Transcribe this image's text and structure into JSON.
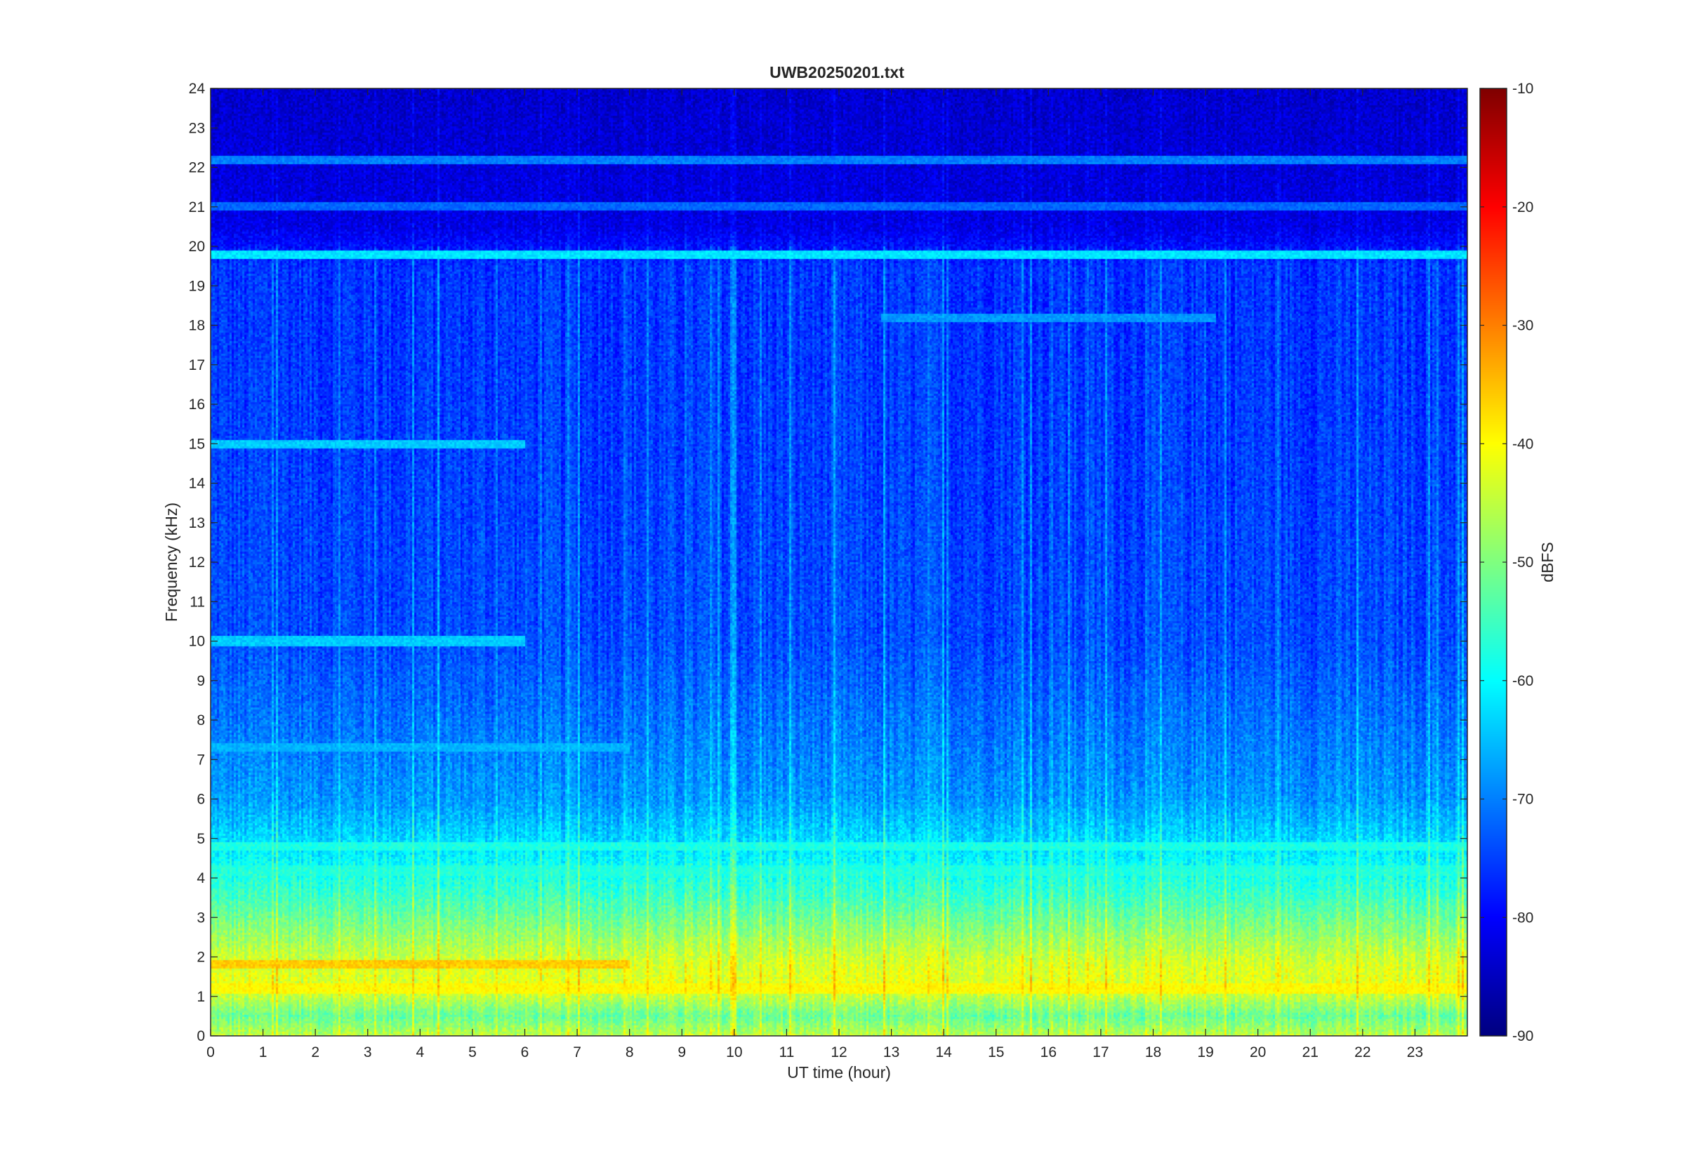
{
  "chart_data": {
    "type": "heatmap",
    "title": "UWB20250201.txt",
    "xlabel": "UT time (hour)",
    "ylabel": "Frequency (kHz)",
    "xlim": [
      0,
      24
    ],
    "ylim": [
      0,
      24
    ],
    "x_ticks": [
      "0",
      "1",
      "2",
      "3",
      "4",
      "5",
      "6",
      "7",
      "8",
      "9",
      "10",
      "11",
      "12",
      "13",
      "14",
      "15",
      "16",
      "17",
      "18",
      "19",
      "20",
      "21",
      "22",
      "23"
    ],
    "y_ticks": [
      "0",
      "1",
      "2",
      "3",
      "4",
      "5",
      "6",
      "7",
      "8",
      "9",
      "10",
      "11",
      "12",
      "13",
      "14",
      "15",
      "16",
      "17",
      "18",
      "19",
      "20",
      "21",
      "22",
      "23",
      "24"
    ],
    "colormap": "jet",
    "colorbar": {
      "label": "dBFS",
      "range": [
        -90,
        -10
      ],
      "ticks": [
        "-10",
        "-20",
        "-30",
        "-40",
        "-50",
        "-60",
        "-70",
        "-80",
        "-90"
      ]
    },
    "background_level_dBFS": -76,
    "low_frequency_profile": [
      {
        "freq_khz": 0.0,
        "level_dBFS": -45
      },
      {
        "freq_khz": 0.5,
        "level_dBFS": -52
      },
      {
        "freq_khz": 1.2,
        "level_dBFS": -42
      },
      {
        "freq_khz": 1.8,
        "level_dBFS": -43
      },
      {
        "freq_khz": 2.5,
        "level_dBFS": -48
      },
      {
        "freq_khz": 3.5,
        "level_dBFS": -55
      },
      {
        "freq_khz": 4.8,
        "level_dBFS": -62
      },
      {
        "freq_khz": 6.0,
        "level_dBFS": -68
      },
      {
        "freq_khz": 8.0,
        "level_dBFS": -71
      },
      {
        "freq_khz": 10.0,
        "level_dBFS": -74
      },
      {
        "freq_khz": 14.0,
        "level_dBFS": -75
      },
      {
        "freq_khz": 19.5,
        "level_dBFS": -76
      },
      {
        "freq_khz": 20.5,
        "level_dBFS": -82
      },
      {
        "freq_khz": 24.0,
        "level_dBFS": -84
      }
    ],
    "features": [
      {
        "kind": "tone",
        "freq_khz": 19.8,
        "t_start": 0,
        "t_end": 24,
        "level_dBFS": -62
      },
      {
        "kind": "tone",
        "freq_khz": 22.2,
        "t_start": 0,
        "t_end": 24,
        "level_dBFS": -70
      },
      {
        "kind": "tone",
        "freq_khz": 21.0,
        "t_start": 0,
        "t_end": 24,
        "level_dBFS": -72
      },
      {
        "kind": "tone",
        "freq_khz": 18.2,
        "t_start": 12.8,
        "t_end": 19.2,
        "level_dBFS": -68
      },
      {
        "kind": "tone",
        "freq_khz": 15.0,
        "t_start": 0,
        "t_end": 6,
        "level_dBFS": -64
      },
      {
        "kind": "tone",
        "freq_khz": 10.0,
        "t_start": 0,
        "t_end": 6,
        "level_dBFS": -64
      },
      {
        "kind": "tone",
        "freq_khz": 7.3,
        "t_start": 0,
        "t_end": 8,
        "level_dBFS": -66
      },
      {
        "kind": "tone",
        "freq_khz": 4.8,
        "t_start": 0,
        "t_end": 24,
        "level_dBFS": -58
      },
      {
        "kind": "tone",
        "freq_khz": 4.2,
        "t_start": 0,
        "t_end": 24,
        "level_dBFS": -58
      },
      {
        "kind": "tone",
        "freq_khz": 1.8,
        "t_start": 0,
        "t_end": 8,
        "level_dBFS": -36
      },
      {
        "kind": "tone",
        "freq_khz": 1.2,
        "t_start": 0,
        "t_end": 24,
        "level_dBFS": -40
      }
    ]
  }
}
